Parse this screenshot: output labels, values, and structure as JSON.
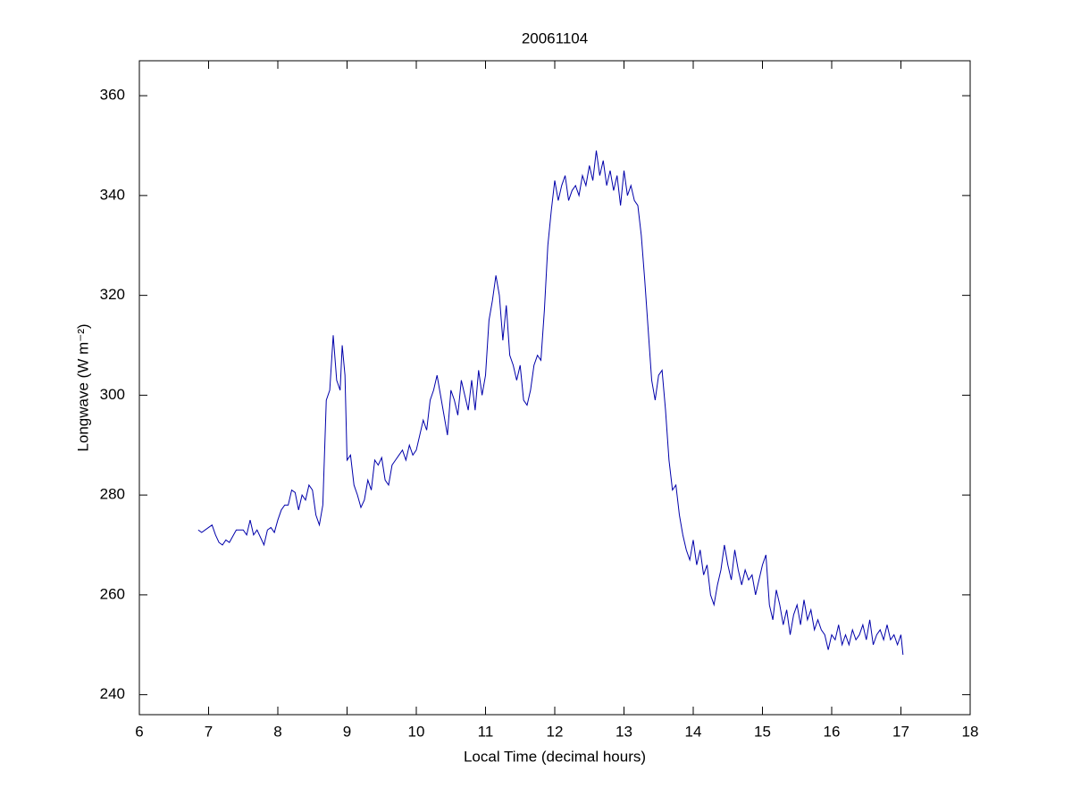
{
  "chart_data": {
    "type": "line",
    "title": "20061104",
    "x_label": "Local Time (decimal hours)",
    "y_label": "Longwave (W m⁻²)",
    "x": [
      6.85,
      6.9,
      7.0,
      7.05,
      7.1,
      7.15,
      7.2,
      7.25,
      7.3,
      7.4,
      7.5,
      7.55,
      7.6,
      7.65,
      7.7,
      7.8,
      7.85,
      7.9,
      7.95,
      8.0,
      8.05,
      8.1,
      8.15,
      8.2,
      8.25,
      8.3,
      8.35,
      8.4,
      8.45,
      8.5,
      8.55,
      8.6,
      8.65,
      8.7,
      8.75,
      8.8,
      8.85,
      8.9,
      8.93,
      8.97,
      9.0,
      9.05,
      9.1,
      9.15,
      9.2,
      9.25,
      9.3,
      9.35,
      9.4,
      9.45,
      9.5,
      9.55,
      9.6,
      9.65,
      9.7,
      9.75,
      9.8,
      9.85,
      9.9,
      9.95,
      10.0,
      10.05,
      10.1,
      10.15,
      10.2,
      10.25,
      10.3,
      10.35,
      10.4,
      10.45,
      10.5,
      10.55,
      10.6,
      10.65,
      10.7,
      10.75,
      10.8,
      10.85,
      10.9,
      10.95,
      11.0,
      11.05,
      11.1,
      11.15,
      11.2,
      11.25,
      11.3,
      11.35,
      11.4,
      11.45,
      11.5,
      11.55,
      11.6,
      11.65,
      11.7,
      11.75,
      11.8,
      11.85,
      11.9,
      11.95,
      12.0,
      12.05,
      12.1,
      12.15,
      12.2,
      12.25,
      12.3,
      12.35,
      12.4,
      12.45,
      12.5,
      12.55,
      12.6,
      12.65,
      12.7,
      12.75,
      12.8,
      12.85,
      12.9,
      12.95,
      13.0,
      13.05,
      13.1,
      13.15,
      13.2,
      13.25,
      13.3,
      13.35,
      13.4,
      13.45,
      13.5,
      13.55,
      13.6,
      13.65,
      13.7,
      13.75,
      13.8,
      13.85,
      13.9,
      13.95,
      14.0,
      14.05,
      14.1,
      14.15,
      14.2,
      14.25,
      14.3,
      14.35,
      14.4,
      14.45,
      14.5,
      14.55,
      14.6,
      14.65,
      14.7,
      14.75,
      14.8,
      14.85,
      14.9,
      14.95,
      15.0,
      15.05,
      15.1,
      15.15,
      15.2,
      15.25,
      15.3,
      15.35,
      15.4,
      15.45,
      15.5,
      15.55,
      15.6,
      15.65,
      15.7,
      15.75,
      15.8,
      15.85,
      15.9,
      15.95,
      16.0,
      16.05,
      16.1,
      16.15,
      16.2,
      16.25,
      16.3,
      16.35,
      16.4,
      16.45,
      16.5,
      16.55,
      16.6,
      16.65,
      16.7,
      16.75,
      16.8,
      16.85,
      16.9,
      16.95,
      17.0,
      17.03
    ],
    "series": [
      {
        "name": "Longwave",
        "color": "#0000aa",
        "values": [
          273,
          272.5,
          273.5,
          274,
          272,
          270.5,
          270,
          271,
          270.5,
          273,
          273,
          272,
          275,
          272,
          273,
          270,
          273,
          273.5,
          272.5,
          275,
          277,
          278,
          278,
          281,
          280.5,
          277,
          280,
          279,
          282,
          281,
          276,
          274,
          278,
          299,
          301,
          312,
          303,
          301,
          310,
          304,
          287,
          288,
          282,
          280,
          277.5,
          279,
          283,
          281,
          287,
          286,
          287.5,
          283,
          282,
          286,
          287,
          288,
          289,
          287,
          290,
          288,
          289,
          292,
          295,
          293,
          299,
          301,
          304,
          300,
          296,
          292,
          301,
          299,
          296,
          303,
          300,
          297,
          303,
          297,
          305,
          300,
          304,
          315,
          319,
          324,
          320,
          311,
          318,
          308,
          306,
          303,
          306,
          299,
          298,
          301,
          306,
          308,
          307,
          317,
          330,
          337,
          343,
          339,
          342,
          344,
          339,
          341,
          342,
          340,
          344,
          342,
          346,
          343,
          349,
          344,
          347,
          342,
          345,
          341,
          344,
          338,
          345,
          340,
          342,
          339,
          338,
          332,
          323,
          313,
          303,
          299,
          304,
          305,
          297,
          287,
          281,
          282,
          276,
          272,
          269,
          267,
          271,
          266,
          269,
          264,
          266,
          260,
          258,
          262,
          265,
          270,
          266,
          263,
          269,
          265,
          262,
          265,
          263,
          264,
          260,
          263,
          266,
          268,
          258,
          255,
          261,
          258,
          254,
          257,
          252,
          256,
          258,
          254,
          259,
          255,
          257,
          253,
          255,
          253,
          252,
          249,
          252,
          251,
          254,
          250,
          252,
          250,
          253,
          251,
          252,
          254,
          251,
          255,
          250,
          252,
          253,
          251,
          254,
          251,
          252,
          250,
          252,
          248
        ]
      }
    ],
    "xlim": [
      6,
      18
    ],
    "xticks": [
      6,
      7,
      8,
      9,
      10,
      11,
      12,
      13,
      14,
      15,
      16,
      17,
      18
    ],
    "ylim": [
      236,
      367
    ],
    "yticks": [
      240,
      260,
      280,
      300,
      320,
      340,
      360
    ],
    "grid": false
  }
}
